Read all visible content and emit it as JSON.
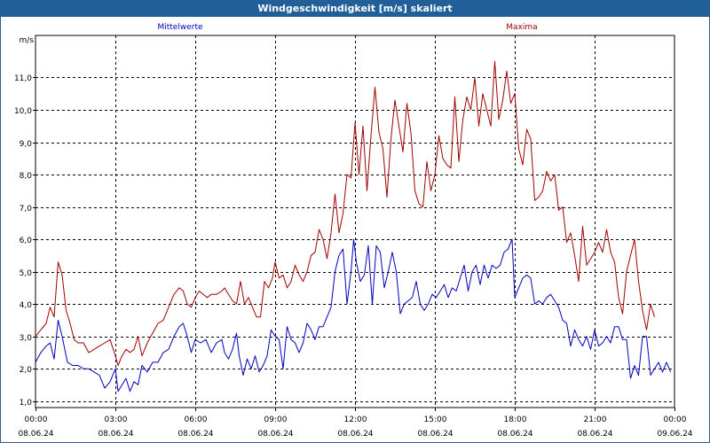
{
  "window_title": "Windgeschwindigkeit [m/s] skaliert",
  "chart_data": {
    "type": "line",
    "ylabel": "m/s",
    "ylim": [
      0.8,
      12.3
    ],
    "yticks": [
      "1,0",
      "2,0",
      "3,0",
      "4,0",
      "5,0",
      "6,0",
      "7,0",
      "8,0",
      "9,0",
      "10,0",
      "11,0"
    ],
    "ytick_values": [
      1,
      2,
      3,
      4,
      5,
      6,
      7,
      8,
      9,
      10,
      11
    ],
    "x_range_hours": [
      0,
      24
    ],
    "xticks": [
      {
        "time": "00:00",
        "date": "08.06.24"
      },
      {
        "time": "03:00",
        "date": "08.06.24"
      },
      {
        "time": "06:00",
        "date": "08.06.24"
      },
      {
        "time": "09:00",
        "date": "08.06.24"
      },
      {
        "time": "12:00",
        "date": "08.06.24"
      },
      {
        "time": "15:00",
        "date": "08.06.24"
      },
      {
        "time": "18:00",
        "date": "08.06.24"
      },
      {
        "time": "21:00",
        "date": "08.06.24"
      },
      {
        "time": "00:00",
        "date": "09.06.24"
      }
    ],
    "grid": true,
    "series": [
      {
        "name": "Mittelwerte",
        "color": "#0000c0",
        "values": [
          [
            0.0,
            2.2
          ],
          [
            0.2,
            2.5
          ],
          [
            0.4,
            2.7
          ],
          [
            0.55,
            2.8
          ],
          [
            0.7,
            2.3
          ],
          [
            0.85,
            3.5
          ],
          [
            1.0,
            3.0
          ],
          [
            1.2,
            2.2
          ],
          [
            1.4,
            2.1
          ],
          [
            1.6,
            2.1
          ],
          [
            1.8,
            2.0
          ],
          [
            2.0,
            2.0
          ],
          [
            2.2,
            1.9
          ],
          [
            2.4,
            1.8
          ],
          [
            2.6,
            1.4
          ],
          [
            2.8,
            1.6
          ],
          [
            3.0,
            2.0
          ],
          [
            3.1,
            1.3
          ],
          [
            3.25,
            1.5
          ],
          [
            3.4,
            1.7
          ],
          [
            3.55,
            1.3
          ],
          [
            3.7,
            1.6
          ],
          [
            3.85,
            1.5
          ],
          [
            4.0,
            2.1
          ],
          [
            4.2,
            1.9
          ],
          [
            4.4,
            2.2
          ],
          [
            4.6,
            2.2
          ],
          [
            4.8,
            2.5
          ],
          [
            5.0,
            2.6
          ],
          [
            5.2,
            3.0
          ],
          [
            5.4,
            3.3
          ],
          [
            5.55,
            3.4
          ],
          [
            5.7,
            3.0
          ],
          [
            5.85,
            2.5
          ],
          [
            6.0,
            2.9
          ],
          [
            6.2,
            2.8
          ],
          [
            6.4,
            2.9
          ],
          [
            6.6,
            2.5
          ],
          [
            6.8,
            2.8
          ],
          [
            7.0,
            2.9
          ],
          [
            7.1,
            2.5
          ],
          [
            7.25,
            2.3
          ],
          [
            7.4,
            2.6
          ],
          [
            7.55,
            3.1
          ],
          [
            7.65,
            2.4
          ],
          [
            7.8,
            1.8
          ],
          [
            7.95,
            2.3
          ],
          [
            8.1,
            2.0
          ],
          [
            8.25,
            2.4
          ],
          [
            8.4,
            1.9
          ],
          [
            8.55,
            2.1
          ],
          [
            8.7,
            2.4
          ],
          [
            8.85,
            3.2
          ],
          [
            9.0,
            3.0
          ],
          [
            9.15,
            2.9
          ],
          [
            9.3,
            2.0
          ],
          [
            9.45,
            3.3
          ],
          [
            9.6,
            2.9
          ],
          [
            9.75,
            2.8
          ],
          [
            9.9,
            2.5
          ],
          [
            10.05,
            2.8
          ],
          [
            10.2,
            3.4
          ],
          [
            10.35,
            3.2
          ],
          [
            10.5,
            2.9
          ],
          [
            10.65,
            3.3
          ],
          [
            10.8,
            3.3
          ],
          [
            10.95,
            3.6
          ],
          [
            11.1,
            3.9
          ],
          [
            11.25,
            5.0
          ],
          [
            11.4,
            5.5
          ],
          [
            11.55,
            5.7
          ],
          [
            11.7,
            4.0
          ],
          [
            11.85,
            5.0
          ],
          [
            11.95,
            6.0
          ],
          [
            12.05,
            5.3
          ],
          [
            12.2,
            4.7
          ],
          [
            12.35,
            4.9
          ],
          [
            12.5,
            5.8
          ],
          [
            12.65,
            4.0
          ],
          [
            12.8,
            5.8
          ],
          [
            12.95,
            5.6
          ],
          [
            13.1,
            4.5
          ],
          [
            13.25,
            5.0
          ],
          [
            13.4,
            5.6
          ],
          [
            13.55,
            5.0
          ],
          [
            13.7,
            3.7
          ],
          [
            13.85,
            4.0
          ],
          [
            14.0,
            4.1
          ],
          [
            14.15,
            4.2
          ],
          [
            14.3,
            4.7
          ],
          [
            14.45,
            4.0
          ],
          [
            14.6,
            3.8
          ],
          [
            14.75,
            4.0
          ],
          [
            14.9,
            4.3
          ],
          [
            15.05,
            4.2
          ],
          [
            15.2,
            4.4
          ],
          [
            15.35,
            4.6
          ],
          [
            15.5,
            4.2
          ],
          [
            15.65,
            4.5
          ],
          [
            15.8,
            4.4
          ],
          [
            15.95,
            4.8
          ],
          [
            16.1,
            5.2
          ],
          [
            16.25,
            4.4
          ],
          [
            16.4,
            5.0
          ],
          [
            16.55,
            5.2
          ],
          [
            16.7,
            4.6
          ],
          [
            16.85,
            5.2
          ],
          [
            17.0,
            4.8
          ],
          [
            17.15,
            5.2
          ],
          [
            17.3,
            5.1
          ],
          [
            17.45,
            5.2
          ],
          [
            17.6,
            5.6
          ],
          [
            17.75,
            5.7
          ],
          [
            17.9,
            6.0
          ],
          [
            18.0,
            4.2
          ],
          [
            18.15,
            4.5
          ],
          [
            18.3,
            4.8
          ],
          [
            18.45,
            4.9
          ],
          [
            18.6,
            4.8
          ],
          [
            18.75,
            4.0
          ],
          [
            18.9,
            4.1
          ],
          [
            19.05,
            4.0
          ],
          [
            19.2,
            4.2
          ],
          [
            19.35,
            4.3
          ],
          [
            19.5,
            4.1
          ],
          [
            19.65,
            3.9
          ],
          [
            19.8,
            3.5
          ],
          [
            19.95,
            3.4
          ],
          [
            20.1,
            2.7
          ],
          [
            20.25,
            3.2
          ],
          [
            20.4,
            2.9
          ],
          [
            20.55,
            2.7
          ],
          [
            20.7,
            3.0
          ],
          [
            20.85,
            2.6
          ],
          [
            21.0,
            3.2
          ],
          [
            21.15,
            2.7
          ],
          [
            21.3,
            2.8
          ],
          [
            21.45,
            3.0
          ],
          [
            21.6,
            2.8
          ],
          [
            21.75,
            3.3
          ],
          [
            21.9,
            3.3
          ],
          [
            22.05,
            2.9
          ],
          [
            22.2,
            2.9
          ],
          [
            22.35,
            1.7
          ],
          [
            22.5,
            2.1
          ],
          [
            22.65,
            1.8
          ],
          [
            22.8,
            3.0
          ],
          [
            22.95,
            3.0
          ],
          [
            23.1,
            1.8
          ],
          [
            23.25,
            2.0
          ],
          [
            23.4,
            2.2
          ],
          [
            23.55,
            1.9
          ],
          [
            23.7,
            2.2
          ],
          [
            23.85,
            1.9
          ]
        ]
      },
      {
        "name": "Maxima",
        "color": "#a00000",
        "values": [
          [
            0.0,
            3.0
          ],
          [
            0.2,
            3.2
          ],
          [
            0.4,
            3.4
          ],
          [
            0.55,
            3.9
          ],
          [
            0.7,
            3.6
          ],
          [
            0.85,
            5.3
          ],
          [
            1.0,
            4.9
          ],
          [
            1.15,
            3.8
          ],
          [
            1.3,
            3.4
          ],
          [
            1.45,
            2.9
          ],
          [
            1.6,
            2.8
          ],
          [
            1.8,
            2.8
          ],
          [
            2.0,
            2.5
          ],
          [
            2.2,
            2.6
          ],
          [
            2.4,
            2.7
          ],
          [
            2.6,
            2.8
          ],
          [
            2.8,
            2.9
          ],
          [
            3.0,
            2.4
          ],
          [
            3.1,
            2.1
          ],
          [
            3.25,
            2.4
          ],
          [
            3.4,
            2.6
          ],
          [
            3.55,
            2.5
          ],
          [
            3.7,
            2.6
          ],
          [
            3.85,
            3.0
          ],
          [
            4.0,
            2.4
          ],
          [
            4.2,
            2.8
          ],
          [
            4.4,
            3.1
          ],
          [
            4.6,
            3.4
          ],
          [
            4.8,
            3.5
          ],
          [
            5.0,
            3.9
          ],
          [
            5.2,
            4.3
          ],
          [
            5.4,
            4.5
          ],
          [
            5.55,
            4.4
          ],
          [
            5.7,
            4.0
          ],
          [
            5.85,
            3.9
          ],
          [
            6.0,
            4.2
          ],
          [
            6.15,
            4.4
          ],
          [
            6.3,
            4.3
          ],
          [
            6.45,
            4.2
          ],
          [
            6.6,
            4.3
          ],
          [
            6.8,
            4.3
          ],
          [
            7.0,
            4.4
          ],
          [
            7.1,
            4.5
          ],
          [
            7.25,
            4.3
          ],
          [
            7.4,
            4.1
          ],
          [
            7.55,
            4.0
          ],
          [
            7.7,
            4.7
          ],
          [
            7.85,
            4.0
          ],
          [
            8.0,
            4.2
          ],
          [
            8.15,
            3.9
          ],
          [
            8.3,
            3.6
          ],
          [
            8.45,
            3.6
          ],
          [
            8.6,
            4.7
          ],
          [
            8.75,
            4.5
          ],
          [
            8.9,
            4.8
          ],
          [
            9.0,
            5.3
          ],
          [
            9.15,
            4.8
          ],
          [
            9.3,
            4.9
          ],
          [
            9.45,
            4.5
          ],
          [
            9.6,
            4.7
          ],
          [
            9.75,
            5.2
          ],
          [
            9.9,
            4.9
          ],
          [
            10.05,
            4.7
          ],
          [
            10.2,
            5.0
          ],
          [
            10.35,
            5.5
          ],
          [
            10.5,
            5.6
          ],
          [
            10.65,
            6.3
          ],
          [
            10.8,
            6.0
          ],
          [
            10.95,
            5.4
          ],
          [
            11.1,
            6.2
          ],
          [
            11.25,
            7.4
          ],
          [
            11.4,
            6.2
          ],
          [
            11.55,
            6.8
          ],
          [
            11.7,
            8.0
          ],
          [
            11.85,
            7.9
          ],
          [
            12.0,
            9.6
          ],
          [
            12.15,
            8.0
          ],
          [
            12.3,
            9.5
          ],
          [
            12.45,
            7.5
          ],
          [
            12.6,
            9.2
          ],
          [
            12.75,
            10.7
          ],
          [
            12.9,
            9.3
          ],
          [
            13.05,
            8.8
          ],
          [
            13.2,
            7.3
          ],
          [
            13.35,
            9.1
          ],
          [
            13.5,
            10.3
          ],
          [
            13.65,
            9.5
          ],
          [
            13.8,
            8.7
          ],
          [
            13.95,
            10.2
          ],
          [
            14.1,
            9.3
          ],
          [
            14.25,
            7.5
          ],
          [
            14.4,
            7.1
          ],
          [
            14.55,
            7.0
          ],
          [
            14.7,
            8.4
          ],
          [
            14.85,
            7.5
          ],
          [
            15.0,
            8.0
          ],
          [
            15.15,
            9.2
          ],
          [
            15.3,
            8.5
          ],
          [
            15.45,
            8.3
          ],
          [
            15.6,
            8.2
          ],
          [
            15.75,
            10.4
          ],
          [
            15.9,
            8.4
          ],
          [
            16.05,
            9.7
          ],
          [
            16.2,
            10.4
          ],
          [
            16.35,
            10.0
          ],
          [
            16.5,
            11.0
          ],
          [
            16.65,
            9.5
          ],
          [
            16.8,
            10.5
          ],
          [
            16.95,
            10.0
          ],
          [
            17.1,
            9.5
          ],
          [
            17.25,
            11.5
          ],
          [
            17.4,
            9.7
          ],
          [
            17.55,
            10.3
          ],
          [
            17.7,
            11.2
          ],
          [
            17.85,
            10.2
          ],
          [
            18.0,
            10.5
          ],
          [
            18.15,
            8.8
          ],
          [
            18.3,
            8.3
          ],
          [
            18.45,
            9.4
          ],
          [
            18.6,
            9.1
          ],
          [
            18.75,
            7.2
          ],
          [
            18.9,
            7.3
          ],
          [
            19.05,
            7.5
          ],
          [
            19.2,
            8.1
          ],
          [
            19.35,
            7.8
          ],
          [
            19.5,
            8.0
          ],
          [
            19.65,
            6.9
          ],
          [
            19.8,
            7.0
          ],
          [
            19.95,
            5.9
          ],
          [
            20.1,
            6.2
          ],
          [
            20.25,
            5.5
          ],
          [
            20.4,
            4.7
          ],
          [
            20.55,
            6.4
          ],
          [
            20.7,
            5.2
          ],
          [
            20.85,
            5.4
          ],
          [
            21.0,
            5.6
          ],
          [
            21.15,
            5.9
          ],
          [
            21.3,
            5.6
          ],
          [
            21.45,
            6.3
          ],
          [
            21.6,
            5.6
          ],
          [
            21.75,
            5.3
          ],
          [
            21.9,
            4.2
          ],
          [
            22.05,
            3.7
          ],
          [
            22.2,
            5.0
          ],
          [
            22.35,
            5.5
          ],
          [
            22.5,
            6.0
          ],
          [
            22.65,
            4.7
          ],
          [
            22.8,
            3.8
          ],
          [
            22.95,
            3.2
          ],
          [
            23.1,
            4.0
          ],
          [
            23.25,
            3.6
          ]
        ]
      }
    ]
  }
}
